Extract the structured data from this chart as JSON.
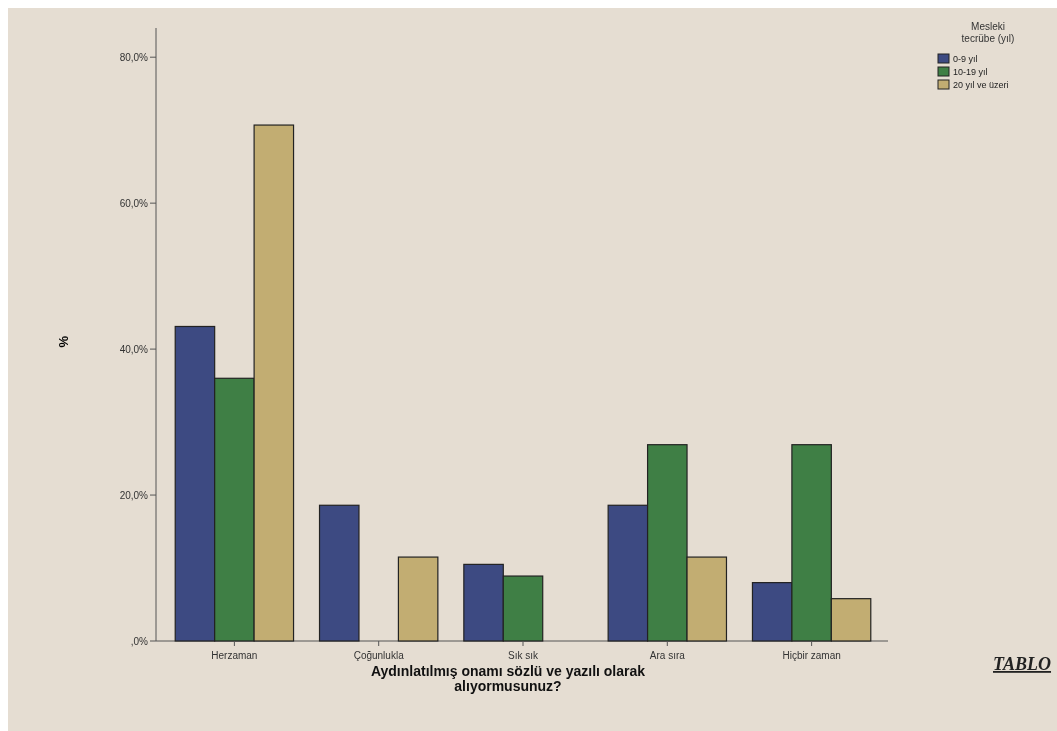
{
  "chart_data": {
    "type": "bar",
    "categories": [
      "Herzaman",
      "Çoğunlukla",
      "Sık sık",
      "Ara sıra",
      "Hiçbir zaman"
    ],
    "series": [
      {
        "name": "0-9 yıl",
        "color": "#3d4a82",
        "values": [
          43.1,
          18.6,
          10.5,
          18.6,
          8.0
        ]
      },
      {
        "name": "10-19 yıl",
        "color": "#3f7f45",
        "values": [
          36.0,
          0,
          8.9,
          26.9,
          26.9
        ]
      },
      {
        "name": "20 yıl ve üzeri",
        "color": "#c2ad72",
        "values": [
          70.7,
          11.5,
          0,
          11.5,
          5.8
        ]
      }
    ],
    "xlabel": "Aydınlatılmış onamı sözlü ve yazılı olarak alıyormusunuz?",
    "ylabel": "%",
    "legend_title": "Mesleki tecrübe (yıl)",
    "legend": "top right",
    "ylim": [
      0,
      84
    ],
    "yticks": [
      {
        "value": 0,
        "label": ",0%"
      },
      {
        "value": 20,
        "label": "20,0%"
      },
      {
        "value": 40,
        "label": "40,0%"
      },
      {
        "value": 60,
        "label": "60,0%"
      },
      {
        "value": 80,
        "label": "80,0%"
      }
    ],
    "annotations": [
      "TABLO"
    ]
  }
}
